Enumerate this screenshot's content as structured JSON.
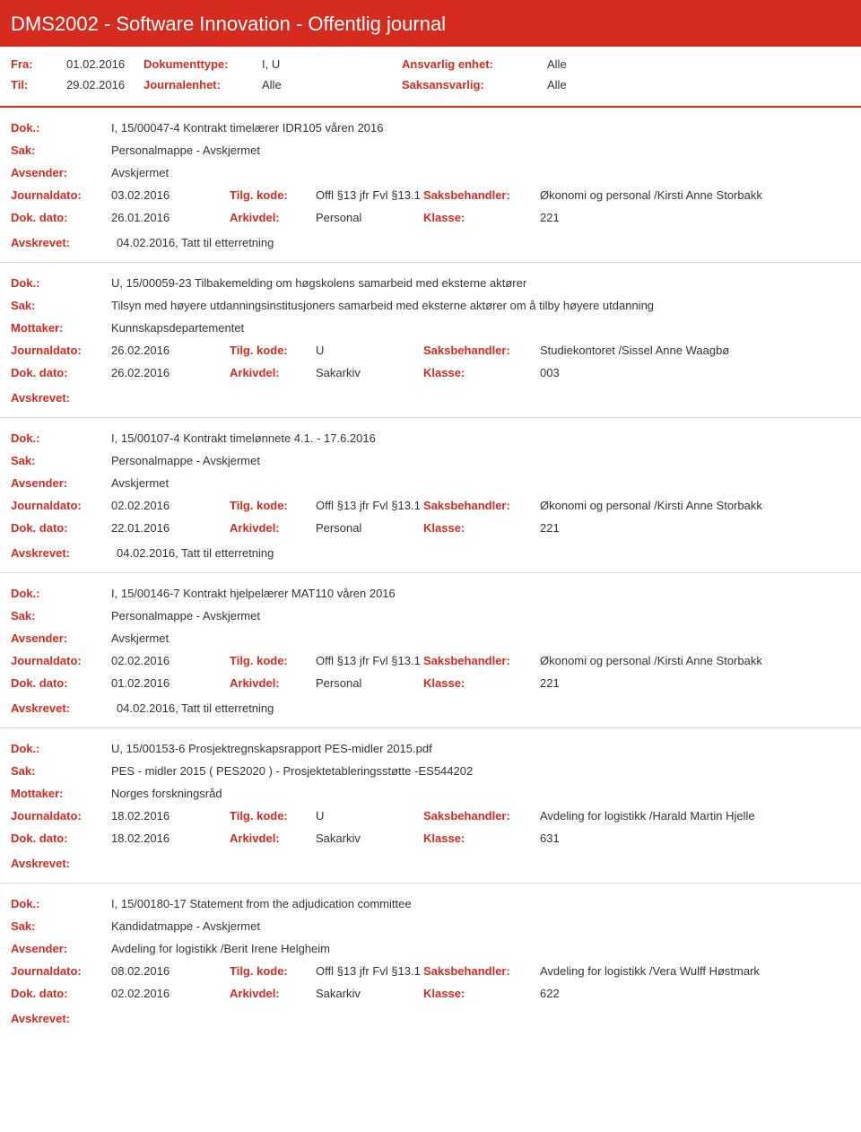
{
  "header": {
    "title": "DMS2002 - Software Innovation - Offentlig journal"
  },
  "meta": {
    "fra_label": "Fra:",
    "fra": "01.02.2016",
    "til_label": "Til:",
    "til": "29.02.2016",
    "doktype_label": "Dokumenttype:",
    "doktype": "I, U",
    "journalenhet_label": "Journalenhet:",
    "journalenhet": "Alle",
    "ansvarlig_label": "Ansvarlig enhet:",
    "ansvarlig": "Alle",
    "saksansvarlig_label": "Saksansvarlig:",
    "saksansvarlig": "Alle"
  },
  "labels": {
    "dok": "Dok.:",
    "sak": "Sak:",
    "avsender": "Avsender:",
    "mottaker": "Mottaker:",
    "journaldato": "Journaldato:",
    "tilgkode": "Tilg. kode:",
    "saksbehandler": "Saksbehandler:",
    "dokdato": "Dok. dato:",
    "arkivdel": "Arkivdel:",
    "klasse": "Klasse:",
    "avskrevet": "Avskrevet:"
  },
  "entries": [
    {
      "dok": "I, 15/00047-4 Kontrakt timelærer IDR105 våren 2016",
      "sak": "Personalmappe - Avskjermet",
      "party_label": "Avsender:",
      "party": "Avskjermet",
      "journaldato": "03.02.2016",
      "tilgkode": "Offl §13 jfr Fvl §13.1",
      "saksbehandler": "Økonomi og personal /Kirsti Anne Storbakk",
      "dokdato": "26.01.2016",
      "arkivdel": "Personal",
      "klasse": "221",
      "avskrevet": "04.02.2016, Tatt til etterretning"
    },
    {
      "dok": "U, 15/00059-23 Tilbakemelding om høgskolens samarbeid med eksterne aktører",
      "sak": "Tilsyn med høyere utdanningsinstitusjoners samarbeid med eksterne aktører om å tilby høyere utdanning",
      "party_label": "Mottaker:",
      "party": "Kunnskapsdepartementet",
      "journaldato": "26.02.2016",
      "tilgkode": "U",
      "saksbehandler": "Studiekontoret /Sissel Anne Waagbø",
      "dokdato": "26.02.2016",
      "arkivdel": "Sakarkiv",
      "klasse": "003",
      "avskrevet": ""
    },
    {
      "dok": "I, 15/00107-4 Kontrakt timelønnete 4.1. - 17.6.2016",
      "sak": "Personalmappe - Avskjermet",
      "party_label": "Avsender:",
      "party": "Avskjermet",
      "journaldato": "02.02.2016",
      "tilgkode": "Offl §13 jfr Fvl §13.1",
      "saksbehandler": "Økonomi og personal /Kirsti Anne Storbakk",
      "dokdato": "22.01.2016",
      "arkivdel": "Personal",
      "klasse": "221",
      "avskrevet": "04.02.2016, Tatt til etterretning"
    },
    {
      "dok": "I, 15/00146-7 Kontrakt hjelpelærer MAT110 våren 2016",
      "sak": "Personalmappe - Avskjermet",
      "party_label": "Avsender:",
      "party": "Avskjermet",
      "journaldato": "02.02.2016",
      "tilgkode": "Offl §13 jfr Fvl §13.1",
      "saksbehandler": "Økonomi og personal /Kirsti Anne Storbakk",
      "dokdato": "01.02.2016",
      "arkivdel": "Personal",
      "klasse": "221",
      "avskrevet": "04.02.2016, Tatt til etterretning"
    },
    {
      "dok": "U, 15/00153-6 Prosjektregnskapsrapport PES-midler 2015.pdf",
      "sak": "PES - midler 2015 ( PES2020 ) - Prosjektetableringsstøtte -ES544202",
      "party_label": "Mottaker:",
      "party": "Norges forskningsråd",
      "journaldato": "18.02.2016",
      "tilgkode": "U",
      "saksbehandler": "Avdeling for logistikk /Harald Martin Hjelle",
      "dokdato": "18.02.2016",
      "arkivdel": "Sakarkiv",
      "klasse": "631",
      "avskrevet": ""
    },
    {
      "dok": "I, 15/00180-17 Statement from the adjudication committee",
      "sak": "Kandidatmappe - Avskjermet",
      "party_label": "Avsender:",
      "party": "Avdeling for logistikk /Berit Irene Helgheim",
      "journaldato": "08.02.2016",
      "tilgkode": "Offl §13 jfr Fvl §13.1",
      "saksbehandler": "Avdeling for logistikk /Vera Wulff Høstmark",
      "dokdato": "02.02.2016",
      "arkivdel": "Sakarkiv",
      "klasse": "622",
      "avskrevet": ""
    }
  ]
}
